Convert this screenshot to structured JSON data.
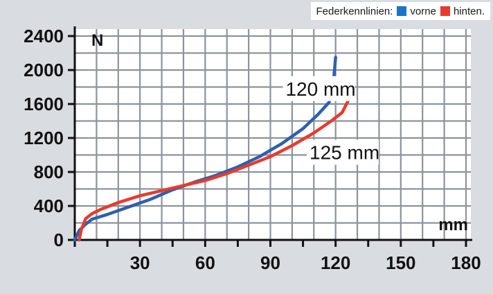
{
  "legend": {
    "title": "Federkennlinien:",
    "items": [
      {
        "label": "vorne",
        "color": "#1a73c8"
      },
      {
        "label": "hinten.",
        "color": "#e63b2e"
      }
    ]
  },
  "chart_data": {
    "type": "line",
    "title": "",
    "xlabel": "mm",
    "ylabel": "N",
    "xlim": [
      0,
      180
    ],
    "ylim": [
      0,
      2400
    ],
    "xticks": [
      30,
      60,
      90,
      120,
      150,
      180
    ],
    "yticks": [
      0,
      400,
      800,
      1200,
      1600,
      2000,
      2400
    ],
    "grid": true,
    "legend_position": "top-right",
    "series": [
      {
        "name": "vorne",
        "color": "#2e5fb0",
        "x": [
          0,
          2,
          5,
          8,
          15,
          25,
          35,
          45,
          55,
          65,
          75,
          85,
          95,
          105,
          112,
          117,
          119,
          120
        ],
        "y": [
          0,
          110,
          185,
          245,
          300,
          390,
          480,
          590,
          680,
          760,
          860,
          980,
          1130,
          1310,
          1480,
          1620,
          1850,
          2150
        ]
      },
      {
        "name": "hinten.",
        "color": "#e63b2e",
        "x": [
          2,
          3,
          5,
          8,
          12,
          20,
          30,
          40,
          50,
          60,
          70,
          80,
          90,
          100,
          110,
          118,
          123,
          126,
          128
        ],
        "y": [
          0,
          120,
          250,
          310,
          360,
          440,
          520,
          580,
          640,
          700,
          780,
          880,
          980,
          1110,
          1260,
          1400,
          1500,
          1650,
          1800
        ]
      }
    ],
    "annotations": [
      {
        "text": "120 mm",
        "x": 97,
        "y": 1700
      },
      {
        "text": "125 mm",
        "x": 108,
        "y": 950
      }
    ]
  }
}
